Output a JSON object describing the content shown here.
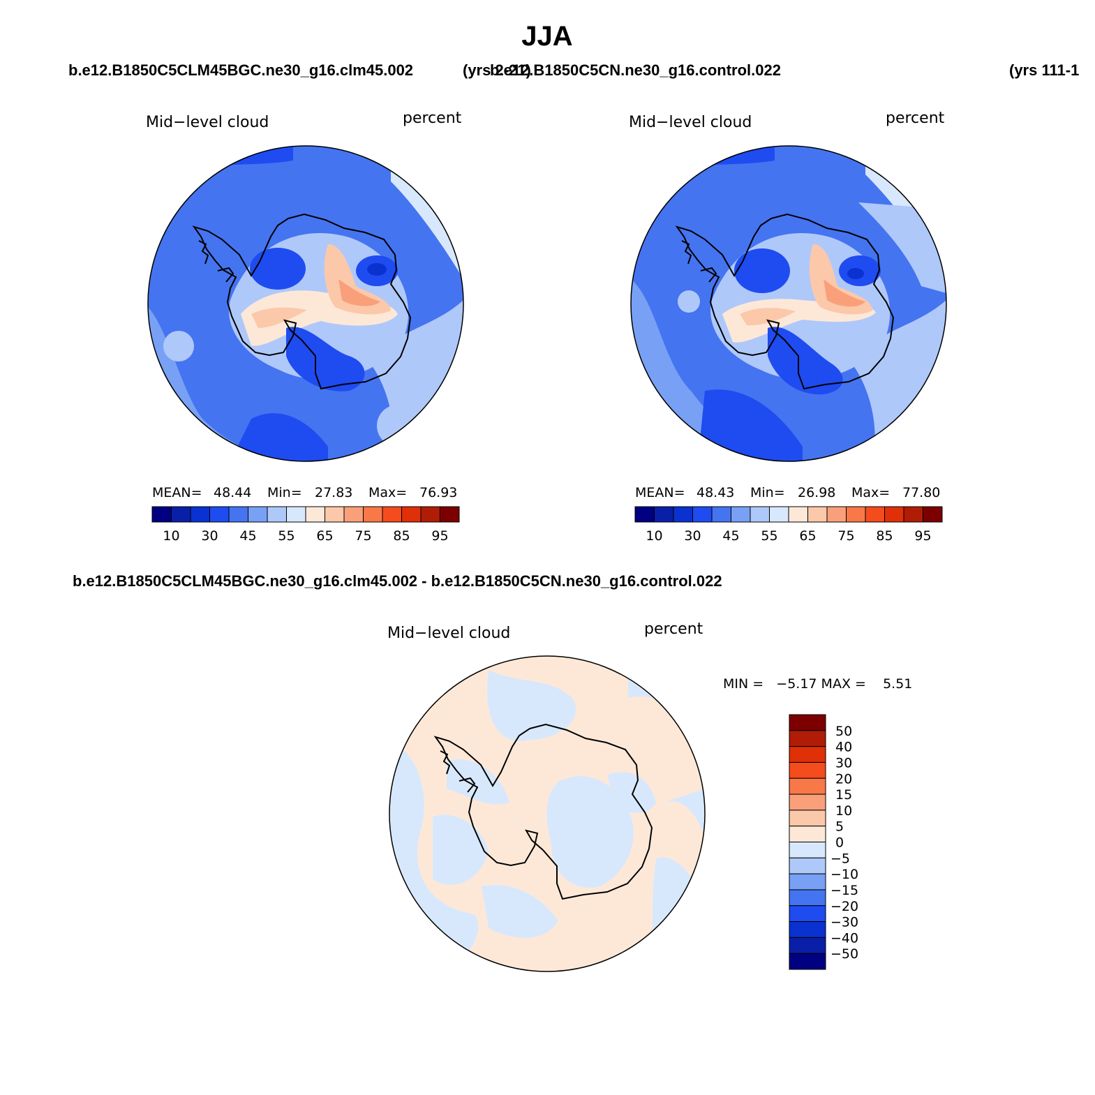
{
  "page": {
    "title": "JJA",
    "header_left": "b.e12.B1850C5CLM45BGC.ne30_g16.clm45.002",
    "header_left_years": "(yrs 2-21)",
    "header_right": "b.e12.B1850C5CN.ne30_g16.control.022",
    "header_right_years": "(yrs 111-1",
    "diff_header": "b.e12.B1850C5CLM45BGC.ne30_g16.clm45.002 - b.e12.B1850C5CN.ne30_g16.control.022"
  },
  "colors": {
    "abs_palette": [
      "#000080",
      "#0a1fa8",
      "#0a32d0",
      "#1e4cf0",
      "#4574f0",
      "#78a0f5",
      "#afc8fa",
      "#d8e8fc",
      "#fde8d8",
      "#fcc8aa",
      "#f9a07a",
      "#f87848",
      "#f54c1e",
      "#e03008",
      "#b01c06",
      "#7c0000"
    ],
    "diff_palette": [
      "#000080",
      "#0a1fa8",
      "#0a32d0",
      "#1e4cf0",
      "#4574f0",
      "#78a0f5",
      "#afc8fa",
      "#d8e8fc",
      "#fde8d8",
      "#fcc8aa",
      "#f9a07a",
      "#f87848",
      "#f54c1e",
      "#e03008",
      "#b01c06",
      "#7c0000"
    ],
    "coast": "#000000"
  },
  "chart_data": [
    {
      "type": "heatmap",
      "projection": "south-polar-stereographic",
      "title": "Mid−level cloud",
      "units": "percent",
      "stats": {
        "mean_label": "MEAN=",
        "mean": "48.44",
        "min_label": "Min=",
        "min": "27.83",
        "max_label": "Max=",
        "max": "76.93"
      },
      "colorbar_ticks": [
        "10",
        "30",
        "45",
        "55",
        "65",
        "75",
        "85",
        "95"
      ],
      "colorbar_orientation": "horizontal"
    },
    {
      "type": "heatmap",
      "projection": "south-polar-stereographic",
      "title": "Mid−level cloud",
      "units": "percent",
      "stats": {
        "mean_label": "MEAN=",
        "mean": "48.43",
        "min_label": "Min=",
        "min": "26.98",
        "max_label": "Max=",
        "max": "77.80"
      },
      "colorbar_ticks": [
        "10",
        "30",
        "45",
        "55",
        "65",
        "75",
        "85",
        "95"
      ],
      "colorbar_orientation": "horizontal"
    },
    {
      "type": "heatmap",
      "projection": "south-polar-stereographic",
      "title": "Mid−level cloud",
      "units": "percent",
      "stats_text": "MIN =   −5.17 MAX =    5.51",
      "colorbar_ticks": [
        "50",
        "40",
        "30",
        "20",
        "15",
        "10",
        "5",
        "0",
        "−5",
        "−10",
        "−15",
        "−20",
        "−30",
        "−40",
        "−50"
      ],
      "colorbar_orientation": "vertical"
    }
  ]
}
